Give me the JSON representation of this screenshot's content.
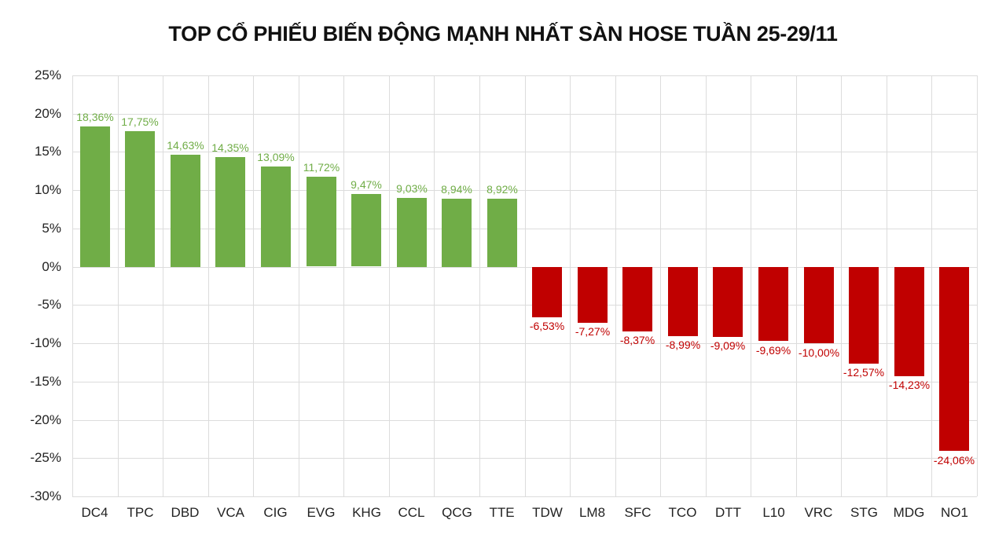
{
  "title": "TOP CỔ PHIẾU BIẾN ĐỘNG MẠNH NHẤT SÀN HOSE TUẦN 25-29/11",
  "colors": {
    "positive": "#70AD47",
    "negative": "#C00000",
    "grid": "#DCDCDC",
    "text": "#222222"
  },
  "chart_data": {
    "type": "bar",
    "title": "TOP CỔ PHIẾU BIẾN ĐỘNG MẠNH NHẤT SÀN HOSE TUẦN 25-29/11",
    "xlabel": "",
    "ylabel": "",
    "ylim": [
      -30,
      25
    ],
    "yticks": [
      "25%",
      "20%",
      "15%",
      "10%",
      "5%",
      "0%",
      "-5%",
      "-10%",
      "-15%",
      "-20%",
      "-25%",
      "-30%"
    ],
    "ytick_values": [
      25,
      20,
      15,
      10,
      5,
      0,
      -5,
      -10,
      -15,
      -20,
      -25,
      -30
    ],
    "grid": true,
    "legend": null,
    "categories": [
      "DC4",
      "TPC",
      "DBD",
      "VCA",
      "CIG",
      "EVG",
      "KHG",
      "CCL",
      "QCG",
      "TTE",
      "TDW",
      "LM8",
      "SFC",
      "TCO",
      "DTT",
      "L10",
      "VRC",
      "STG",
      "MDG",
      "NO1"
    ],
    "values": [
      18.36,
      17.75,
      14.63,
      14.35,
      13.09,
      11.72,
      9.47,
      9.03,
      8.94,
      8.92,
      -6.53,
      -7.27,
      -8.37,
      -8.99,
      -9.09,
      -9.69,
      -10.0,
      -12.57,
      -14.23,
      -24.06
    ],
    "labels": [
      "18,36%",
      "17,75%",
      "14,63%",
      "14,35%",
      "13,09%",
      "11,72%",
      "9,47%",
      "9,03%",
      "8,94%",
      "8,92%",
      "-6,53%",
      "-7,27%",
      "-8,37%",
      "-8,99%",
      "-9,09%",
      "-9,69%",
      "-10,00%",
      "-12,57%",
      "-14,23%",
      "-24,06%"
    ]
  }
}
